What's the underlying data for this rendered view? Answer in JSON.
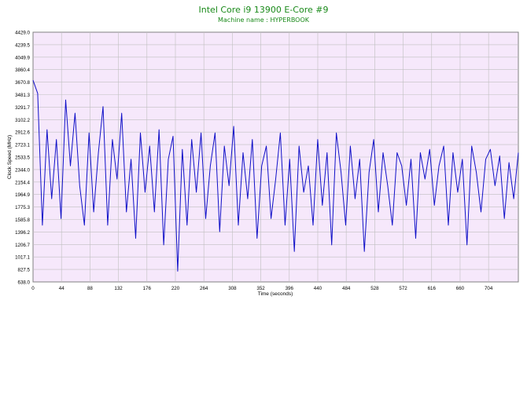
{
  "colors": {
    "plot_background": "#f6e8fb",
    "grid": "#bfbfbf",
    "series": "#1010c8",
    "title": "#1a8a1a"
  },
  "chart_data": {
    "type": "line",
    "title": "Intel Core i9 13900 E-Core #9",
    "subtitle": "Machine name : HYPERBOOK",
    "xlabel": "Time (seconds)",
    "ylabel": "Clock Speed (MHz)",
    "xlim": [
      0,
      750
    ],
    "ylim": [
      638.0,
      4429.0
    ],
    "grid": true,
    "xticks": [
      "0",
      "44",
      "88",
      "132",
      "176",
      "220",
      "264",
      "308",
      "352",
      "396",
      "440",
      "484",
      "528",
      "572",
      "616",
      "660",
      "704"
    ],
    "yticks": [
      "638.0",
      "827.5",
      "1017.1",
      "1206.7",
      "1396.2",
      "1585.8",
      "1775.3",
      "1964.9",
      "2154.4",
      "2344.0",
      "2533.5",
      "2723.1",
      "2912.6",
      "3102.2",
      "3291.7",
      "3481.3",
      "3670.8",
      "3860.4",
      "4049.9",
      "4239.5",
      "4429.0"
    ],
    "series": [
      {
        "values": [
          3700,
          3500,
          1500,
          2950,
          1900,
          2800,
          1600,
          3400,
          2400,
          3200,
          2100,
          1500,
          2900,
          1700,
          2600,
          3300,
          1500,
          2800,
          2200,
          3200,
          1700,
          2500,
          1300,
          2900,
          2000,
          2700,
          1700,
          2950,
          1200,
          2500,
          2850,
          800,
          2650,
          1500,
          2800,
          2000,
          2900,
          1600,
          2400,
          2900,
          1400,
          2700,
          2100,
          3000,
          1500,
          2600,
          1900,
          2800,
          1300,
          2400,
          2700,
          1600,
          2200,
          2900,
          1500,
          2500,
          1100,
          2700,
          2000,
          2400,
          1500,
          2800,
          1800,
          2600,
          1200,
          2900,
          2300,
          1500,
          2700,
          1900,
          2500,
          1100,
          2300,
          2800,
          1700,
          2600,
          2100,
          1500,
          2600,
          2400,
          1800,
          2500,
          1300,
          2600,
          2200,
          2650,
          1800,
          2400,
          2700,
          1500,
          2600,
          2000,
          2500,
          1200,
          2700,
          2300,
          1700,
          2500,
          2650,
          2100,
          2550,
          1600,
          2450,
          1900,
          2600
        ]
      }
    ]
  }
}
